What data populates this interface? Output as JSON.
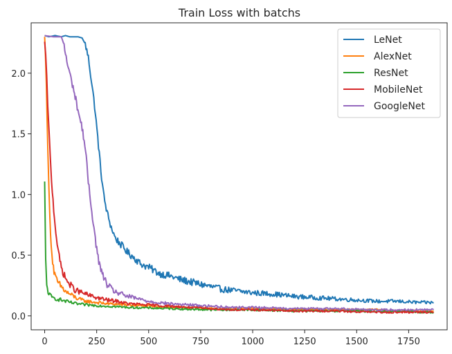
{
  "chart_data": {
    "type": "line",
    "title": "Train Loss with batchs",
    "xlabel": "",
    "ylabel": "",
    "xlim": [
      -65,
      1935
    ],
    "ylim": [
      -0.115,
      2.415
    ],
    "xticks": [
      0,
      250,
      500,
      750,
      1000,
      1250,
      1500,
      1750
    ],
    "xtick_labels": [
      "0",
      "250",
      "500",
      "750",
      "1000",
      "1250",
      "1500",
      "1750"
    ],
    "yticks": [
      0.0,
      0.5,
      1.0,
      1.5,
      2.0
    ],
    "ytick_labels": [
      "0.0",
      "0.5",
      "1.0",
      "1.5",
      "2.0"
    ],
    "grid": false,
    "legend": "top-right",
    "series": [
      {
        "name": "LeNet",
        "color": "#1f77b4",
        "x": [
          0,
          20,
          50,
          80,
          100,
          120,
          140,
          160,
          180,
          195,
          210,
          225,
          240,
          255,
          270,
          285,
          300,
          320,
          340,
          370,
          400,
          430,
          460,
          500,
          550,
          600,
          650,
          700,
          750,
          800,
          850,
          900,
          950,
          1000,
          1100,
          1200,
          1300,
          1400,
          1500,
          1600,
          1700,
          1800,
          1870
        ],
        "y": [
          2.31,
          2.3,
          2.31,
          2.3,
          2.31,
          2.3,
          2.3,
          2.3,
          2.29,
          2.24,
          2.13,
          1.94,
          1.73,
          1.47,
          1.2,
          0.98,
          0.85,
          0.73,
          0.64,
          0.58,
          0.52,
          0.48,
          0.43,
          0.4,
          0.35,
          0.33,
          0.3,
          0.28,
          0.26,
          0.24,
          0.22,
          0.21,
          0.2,
          0.19,
          0.18,
          0.16,
          0.15,
          0.14,
          0.13,
          0.12,
          0.12,
          0.11,
          0.11
        ]
      },
      {
        "name": "AlexNet",
        "color": "#ff7f0e",
        "x": [
          0,
          8,
          16,
          25,
          35,
          45,
          55,
          65,
          80,
          100,
          130,
          160,
          200,
          250,
          300,
          400,
          500,
          600,
          700,
          800,
          900,
          1000,
          1200,
          1400,
          1600,
          1700,
          1800,
          1870
        ],
        "y": [
          2.3,
          1.95,
          1.3,
          0.8,
          0.5,
          0.36,
          0.3,
          0.27,
          0.24,
          0.2,
          0.17,
          0.14,
          0.12,
          0.11,
          0.1,
          0.09,
          0.08,
          0.07,
          0.07,
          0.06,
          0.06,
          0.06,
          0.05,
          0.05,
          0.05,
          0.04,
          0.04,
          0.04
        ]
      },
      {
        "name": "ResNet",
        "color": "#2ca02c",
        "x": [
          0,
          5,
          10,
          20,
          35,
          60,
          100,
          150,
          200,
          300,
          400,
          600,
          800,
          1000,
          1200,
          1500,
          1870
        ],
        "y": [
          1.09,
          0.45,
          0.25,
          0.18,
          0.15,
          0.14,
          0.12,
          0.1,
          0.09,
          0.08,
          0.07,
          0.06,
          0.05,
          0.05,
          0.04,
          0.04,
          0.03
        ]
      },
      {
        "name": "MobileNet",
        "color": "#d62728",
        "x": [
          0,
          5,
          10,
          15,
          20,
          30,
          40,
          50,
          60,
          70,
          80,
          95,
          110,
          130,
          150,
          180,
          210,
          250,
          300,
          350,
          400,
          500,
          600,
          700,
          800,
          900,
          1000,
          1200,
          1400,
          1600,
          1870
        ],
        "y": [
          2.24,
          2.15,
          1.95,
          1.75,
          1.55,
          1.2,
          0.95,
          0.75,
          0.6,
          0.48,
          0.4,
          0.33,
          0.28,
          0.24,
          0.21,
          0.19,
          0.17,
          0.15,
          0.13,
          0.12,
          0.1,
          0.09,
          0.08,
          0.07,
          0.06,
          0.05,
          0.05,
          0.04,
          0.04,
          0.03,
          0.03
        ]
      },
      {
        "name": "GoogleNet",
        "color": "#9467bd",
        "x": [
          0,
          40,
          80,
          90,
          100,
          110,
          120,
          130,
          140,
          150,
          160,
          170,
          180,
          190,
          200,
          210,
          220,
          230,
          240,
          250,
          260,
          270,
          280,
          300,
          320,
          350,
          400,
          450,
          500,
          600,
          700,
          800,
          900,
          1000,
          1200,
          1400,
          1600,
          1800,
          1870
        ],
        "y": [
          2.31,
          2.3,
          2.3,
          2.25,
          2.16,
          2.07,
          2.0,
          1.93,
          1.86,
          1.78,
          1.7,
          1.62,
          1.55,
          1.45,
          1.3,
          1.1,
          0.96,
          0.82,
          0.68,
          0.55,
          0.45,
          0.38,
          0.33,
          0.26,
          0.22,
          0.19,
          0.16,
          0.14,
          0.12,
          0.1,
          0.09,
          0.08,
          0.07,
          0.07,
          0.06,
          0.06,
          0.05,
          0.05,
          0.05
        ]
      }
    ]
  }
}
